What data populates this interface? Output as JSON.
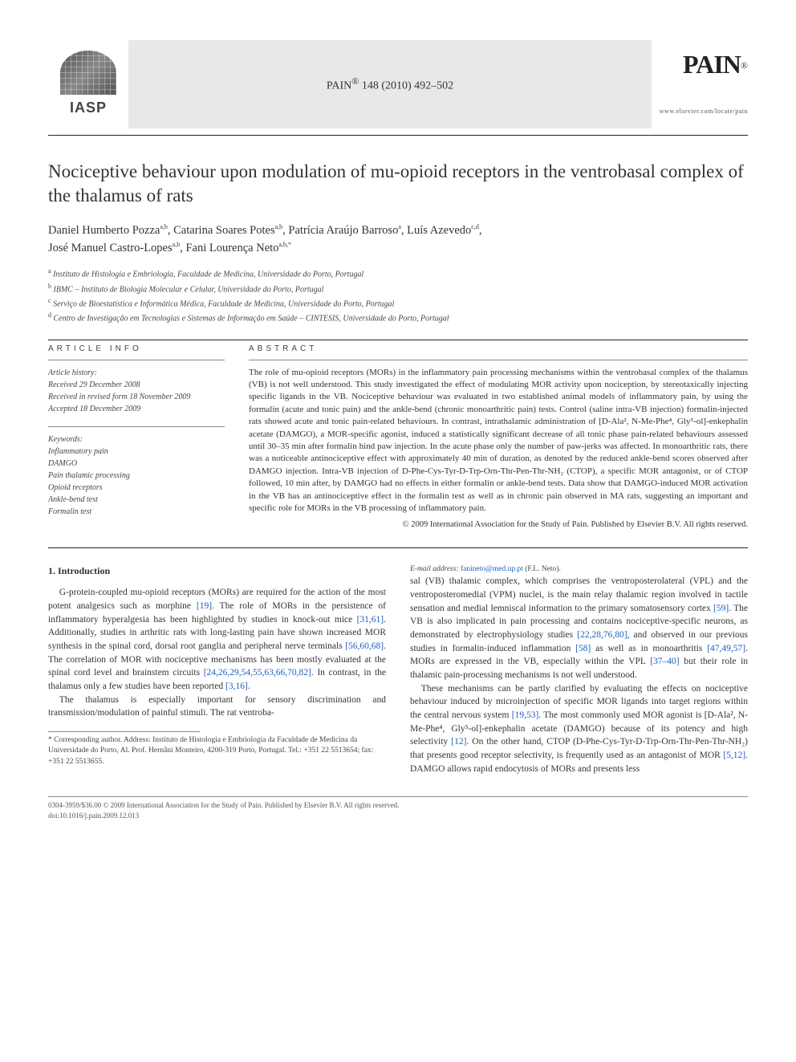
{
  "journal": {
    "ref_prefix": "PAIN",
    "ref_reg": "®",
    "ref_citation": "148 (2010) 492–502",
    "brand": "PAIN",
    "url": "www.elsevier.com/locate/pain",
    "iasp": "IASP"
  },
  "title": "Nociceptive behaviour upon modulation of mu-opioid receptors in the ventrobasal complex of the thalamus of rats",
  "authors": [
    {
      "name": "Daniel Humberto Pozza",
      "affs": "a,b"
    },
    {
      "name": "Catarina Soares Potes",
      "affs": "a,b"
    },
    {
      "name": "Patrícia Araújo Barroso",
      "affs": "a"
    },
    {
      "name": "Luís Azevedo",
      "affs": "c,d"
    },
    {
      "name": "José Manuel Castro-Lopes",
      "affs": "a,b"
    },
    {
      "name": "Fani Lourença Neto",
      "affs": "a,b,*"
    }
  ],
  "affiliations": [
    {
      "key": "a",
      "text": "Instituto de Histologia e Embriologia, Faculdade de Medicina, Universidade do Porto, Portugal"
    },
    {
      "key": "b",
      "text": "IBMC – Instituto de Biologia Molecular e Celular, Universidade do Porto, Portugal"
    },
    {
      "key": "c",
      "text": "Serviço de Bioestatística e Informática Médica, Faculdade de Medicina, Universidade do Porto, Portugal"
    },
    {
      "key": "d",
      "text": "Centro de Investigação em Tecnologias e Sistemas de Informação em Saúde – CINTESIS, Universidade do Porto, Portugal"
    }
  ],
  "article_info_head": "ARTICLE INFO",
  "abstract_head": "ABSTRACT",
  "history": {
    "head": "Article history:",
    "received": "Received 29 December 2008",
    "revised": "Received in revised form 18 November 2009",
    "accepted": "Accepted 18 December 2009"
  },
  "keywords": {
    "head": "Keywords:",
    "items": [
      "Inflammatory pain",
      "DAMGO",
      "Pain thalamic processing",
      "Opioid receptors",
      "Ankle-bend test",
      "Formalin test"
    ]
  },
  "abstract": "The role of mu-opioid receptors (MORs) in the inflammatory pain processing mechanisms within the ventrobasal complex of the thalamus (VB) is not well understood. This study investigated the effect of modulating MOR activity upon nociception, by stereotaxically injecting specific ligands in the VB. Nociceptive behaviour was evaluated in two established animal models of inflammatory pain, by using the formalin (acute and tonic pain) and the ankle-bend (chronic monoarthritic pain) tests. Control (saline intra-VB injection) formalin-injected rats showed acute and tonic pain-related behaviours. In contrast, intrathalamic administration of [D-Ala², N-Me-Phe⁴, Gly⁵-ol]-enkephalin acetate (DAMGO), a MOR-specific agonist, induced a statistically significant decrease of all tonic phase pain-related behaviours assessed until 30–35 min after formalin hind paw injection. In the acute phase only the number of paw-jerks was affected. In monoarthritic rats, there was a noticeable antinociceptive effect with approximately 40 min of duration, as denoted by the reduced ankle-bend scores observed after DAMGO injection. Intra-VB injection of D-Phe-Cys-Tyr-D-Trp-Orn-Thr-Pen-Thr-NH₂ (CTOP), a specific MOR antagonist, or of CTOP followed, 10 min after, by DAMGO had no effects in either formalin or ankle-bend tests. Data show that DAMGO-induced MOR activation in the VB has an antinociceptive effect in the formalin test as well as in chronic pain observed in MA rats, suggesting an important and specific role for MORs in the VB processing of inflammatory pain.",
  "copyright_line": "© 2009 International Association for the Study of Pain. Published by Elsevier B.V. All rights reserved.",
  "intro_head": "1. Introduction",
  "intro_p1": "G-protein-coupled mu-opioid receptors (MORs) are required for the action of the most potent analgesics such as morphine [19]. The role of MORs in the persistence of inflammatory hyperalgesia has been highlighted by studies in knock-out mice [31,61]. Additionally, studies in arthritic rats with long-lasting pain have shown increased MOR synthesis in the spinal cord, dorsal root ganglia and peripheral nerve terminals [56,60,68]. The correlation of MOR with nociceptive mechanisms has been mostly evaluated at the spinal cord level and brainstem circuits [24,26,29,54,55,63,66,70,82]. In contrast, in the thalamus only a few studies have been reported [3,16].",
  "intro_p2": "The thalamus is especially important for sensory discrimination and transmission/modulation of painful stimuli. The rat ventrobasal (VB) thalamic complex, which comprises the ventroposterolateral (VPL) and the ventroposteromedial (VPM) nuclei, is the main relay thalamic region involved in tactile sensation and medial lemniscal information to the primary somatosensory cortex [59]. The VB is also implicated in pain processing and contains nociceptive-specific neurons, as demonstrated by electrophysiology studies [22,28,76,80], and observed in our previous studies in formalin-induced inflammation [58] as well as in monoarthritis [47,49,57]. MORs are expressed in the VB, especially within the VPL [37–40] but their role in thalamic pain-processing mechanisms is not well understood.",
  "intro_p3": "These mechanisms can be partly clarified by evaluating the effects on nociceptive behaviour induced by microinjection of specific MOR ligands into target regions within the central nervous system [19,53]. The most commonly used MOR agonist is [D-Ala², N-Me-Phe⁴, Gly⁵-ol]-enkephalin acetate (DAMGO) because of its potency and high selectivity [12]. On the other hand, CTOP (D-Phe-Cys-Tyr-D-Trp-Orn-Thr-Pen-Thr-NH₂) that presents good receptor selectivity, is frequently used as an antagonist of MOR [5,12]. DAMGO allows rapid endocytosis of MORs and presents less",
  "corr_note": "* Corresponding author. Address: Instituto de Histologia e Embriologia da Faculdade de Medicina da Universidade do Porto, Al. Prof. Hernâni Monteiro, 4200-319 Porto, Portugal. Tel.: +351 22 5513654; fax: +351 22 5513655.",
  "corr_email_label": "E-mail address:",
  "corr_email": "fanineto@med.up.pt",
  "corr_email_who": "(F.L. Neto).",
  "footer_line1": "0304-3959/$36.00 © 2009 International Association for the Study of Pain. Published by Elsevier B.V. All rights reserved.",
  "footer_line2": "doi:10.1016/j.pain.2009.12.013",
  "ref_links": {
    "r19": "[19]",
    "r31_61": "[31,61]",
    "r56_60_68": "[56,60,68]",
    "r_spinal": "[24,26,29,54,55,63,66,70,82]",
    "r3_16": "[3,16]",
    "r59": "[59]",
    "r_ep": "[22,28,76,80]",
    "r58": "[58]",
    "r47_49_57": "[47,49,57]",
    "r37_40": "[37–40]",
    "r19_53": "[19,53]",
    "r12": "[12]",
    "r5_12": "[5,12]"
  },
  "colors": {
    "header_bg": "#e8e8e8",
    "text": "#333333",
    "link": "#2060c0",
    "rule": "#222222",
    "muted": "#555555"
  },
  "typography": {
    "title_pt": 23,
    "body_pt": 11.5,
    "abstract_pt": 11,
    "small_pt": 10,
    "footnote_pt": 9.5
  }
}
